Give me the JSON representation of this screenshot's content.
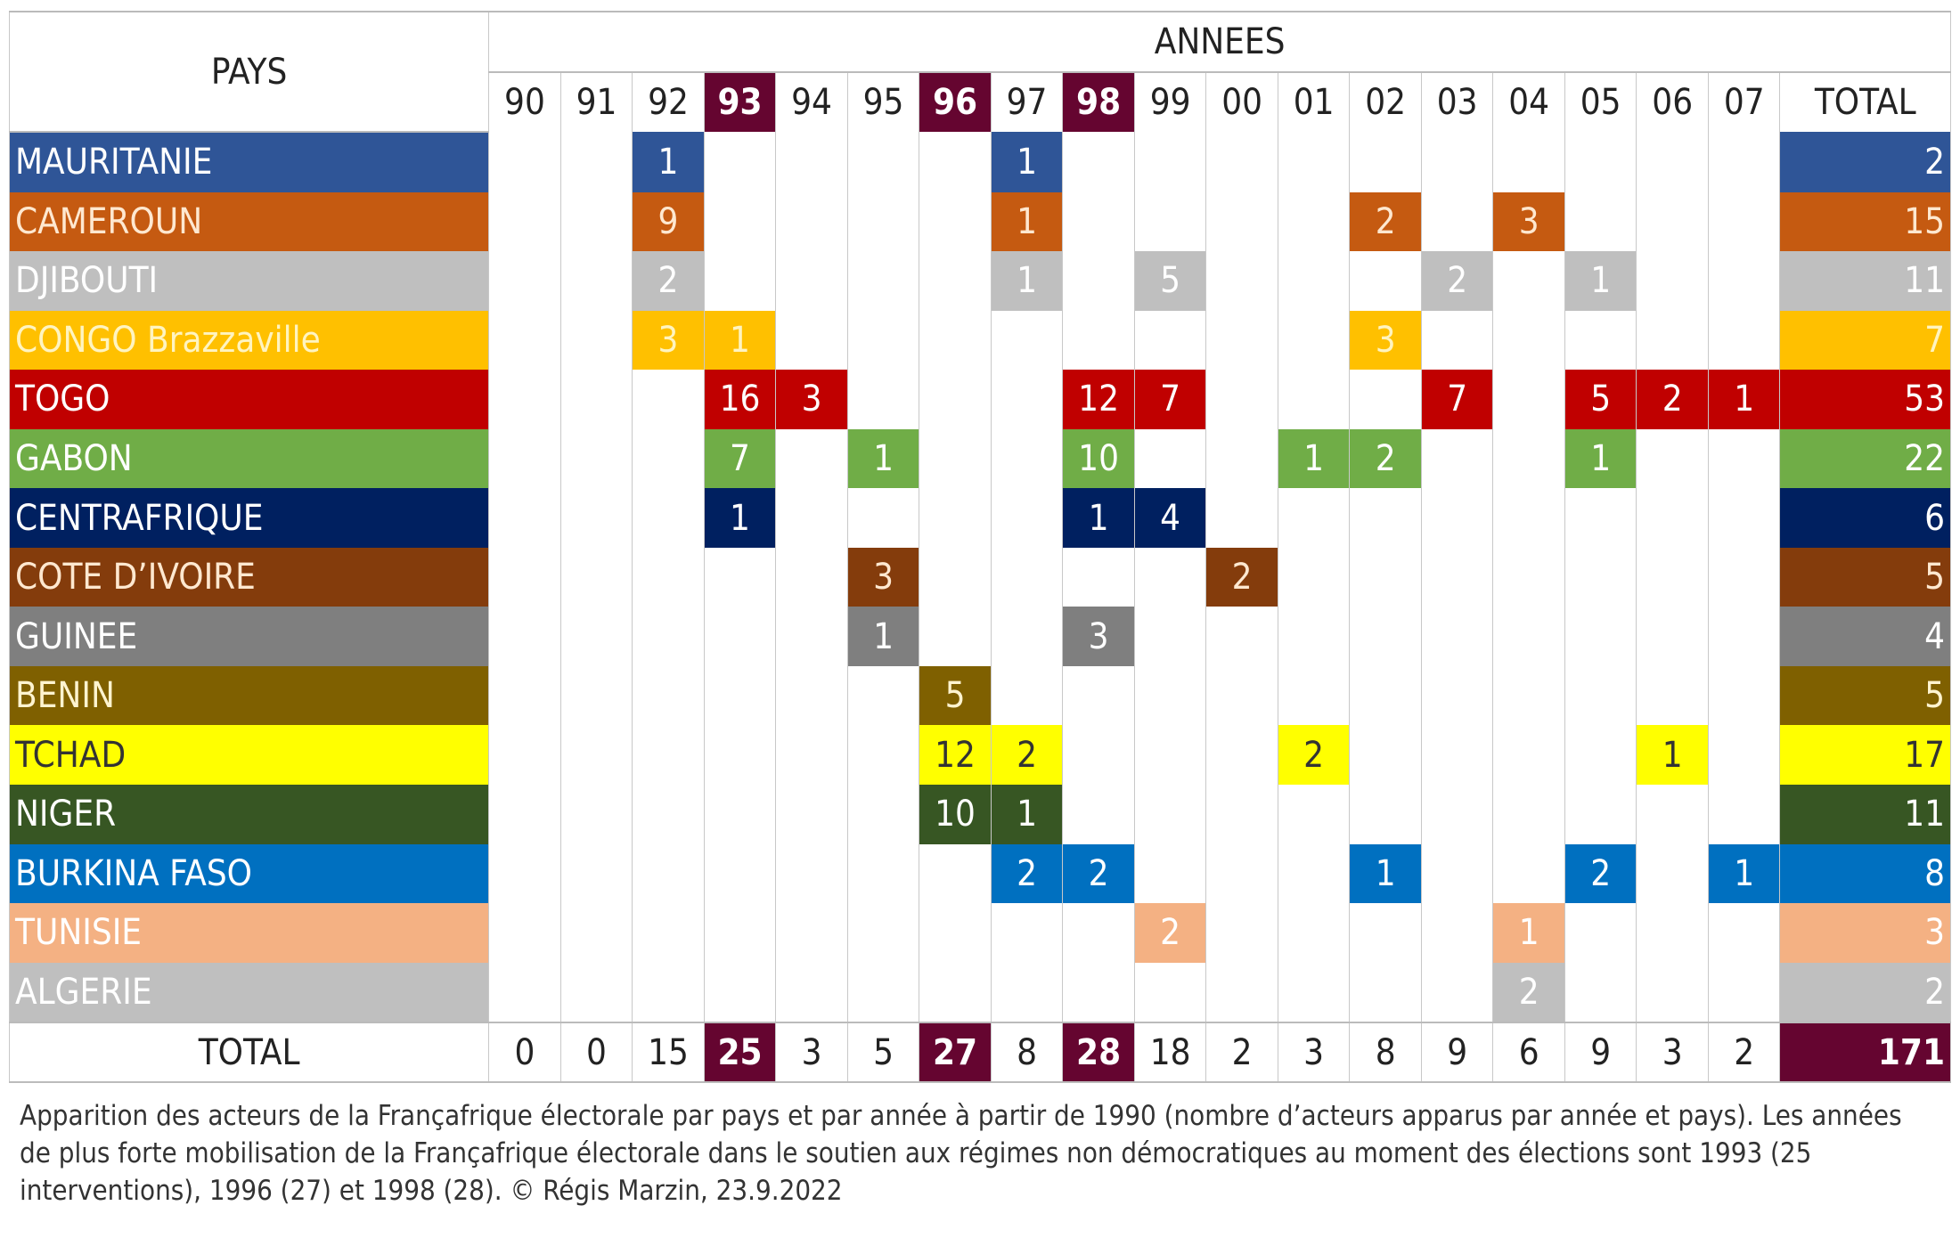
{
  "header": {
    "pays_label": "PAYS",
    "annees_label": "ANNEES",
    "total_label": "TOTAL"
  },
  "years": [
    "90",
    "91",
    "92",
    "93",
    "94",
    "95",
    "96",
    "97",
    "98",
    "99",
    "00",
    "01",
    "02",
    "03",
    "04",
    "05",
    "06",
    "07"
  ],
  "highlight_years": [
    "93",
    "96",
    "98"
  ],
  "highlight_color": "#650530",
  "rows": [
    {
      "country": "MAURITANIE",
      "color": "#2F5597",
      "text": "#ffffff",
      "values": {
        "92": "1",
        "97": "1"
      },
      "total": "2"
    },
    {
      "country": "CAMEROUN",
      "color": "#C55A11",
      "text": "#ffe8d0",
      "values": {
        "92": "9",
        "97": "1",
        "02": "2",
        "04": "3"
      },
      "total": "15"
    },
    {
      "country": "DJIBOUTI",
      "color": "#BFBFBF",
      "text": "#ffffff",
      "values": {
        "92": "2",
        "97": "1",
        "99": "5",
        "03": "2",
        "05": "1"
      },
      "total": "11"
    },
    {
      "country": "CONGO Brazzaville",
      "color": "#FFC000",
      "text": "#fff4c0",
      "values": {
        "92": "3",
        "93": "1",
        "02": "3"
      },
      "total": "7"
    },
    {
      "country": "TOGO",
      "color": "#C00000",
      "text": "#ffffff",
      "values": {
        "93": "16",
        "94": "3",
        "98": "12",
        "99": "7",
        "03": "7",
        "05": "5",
        "06": "2",
        "07": "1"
      },
      "total": "53"
    },
    {
      "country": "GABON",
      "color": "#70AD47",
      "text": "#ffffff",
      "values": {
        "93": "7",
        "95": "1",
        "98": "10",
        "01": "1",
        "02": "2",
        "05": "1"
      },
      "total": "22"
    },
    {
      "country": "CENTRAFRIQUE",
      "color": "#002060",
      "text": "#ffffff",
      "values": {
        "93": "1",
        "98": "1",
        "99": "4"
      },
      "total": "6"
    },
    {
      "country": "COTE D’IVOIRE",
      "color": "#843C0C",
      "text": "#ffe8d0",
      "values": {
        "95": "3",
        "00": "2"
      },
      "total": "5"
    },
    {
      "country": "GUINEE",
      "color": "#7F7F7F",
      "text": "#ffffff",
      "values": {
        "95": "1",
        "98": "3"
      },
      "total": "4"
    },
    {
      "country": "BENIN",
      "color": "#7F6000",
      "text": "#fff4d0",
      "values": {
        "96": "5"
      },
      "total": "5"
    },
    {
      "country": "TCHAD",
      "color": "#FFFF00",
      "text": "#333333",
      "values": {
        "96": "12",
        "97": "2",
        "01": "2",
        "06": "1"
      },
      "total": "17"
    },
    {
      "country": "NIGER",
      "color": "#375623",
      "text": "#ffffff",
      "values": {
        "96": "10",
        "97": "1"
      },
      "total": "11"
    },
    {
      "country": "BURKINA FASO",
      "color": "#0070C0",
      "text": "#ffffff",
      "values": {
        "97": "2",
        "98": "2",
        "02": "1",
        "05": "2",
        "07": "1"
      },
      "total": "8"
    },
    {
      "country": "TUNISIE",
      "color": "#F4B183",
      "text": "#ffffff",
      "values": {
        "99": "2",
        "04": "1"
      },
      "total": "3"
    },
    {
      "country": "ALGERIE",
      "color": "#BFBFBF",
      "text": "#ffffff",
      "values": {
        "04": "2"
      },
      "total": "2"
    }
  ],
  "totals": {
    "label": "TOTAL",
    "values": [
      "0",
      "0",
      "15",
      "25",
      "3",
      "5",
      "27",
      "8",
      "28",
      "18",
      "2",
      "3",
      "8",
      "9",
      "6",
      "9",
      "3",
      "2"
    ],
    "grand_total": "171"
  },
  "caption": "Apparition des acteurs de la Françafrique électorale par pays et par année à partir de 1990 (nombre d’acteurs apparus par année et pays). Les années de plus forte mobilisation de la Françafrique électorale dans le soutien aux régimes non démocratiques au moment des élections sont 1993 (25 interventions), 1996 (27) et 1998 (28). © Régis Marzin, 23.9.2022"
}
